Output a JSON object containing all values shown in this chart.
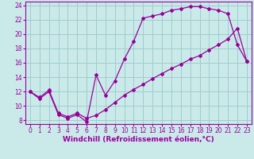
{
  "xlabel": "Windchill (Refroidissement éolien,°C)",
  "background_color": "#caeaea",
  "grid_color": "#a0cccc",
  "line_color": "#990099",
  "xlim": [
    -0.5,
    23.5
  ],
  "ylim": [
    7.5,
    24.5
  ],
  "xticks": [
    0,
    1,
    2,
    3,
    4,
    5,
    6,
    7,
    8,
    9,
    10,
    11,
    12,
    13,
    14,
    15,
    16,
    17,
    18,
    19,
    20,
    21,
    22,
    23
  ],
  "yticks": [
    8,
    10,
    12,
    14,
    16,
    18,
    20,
    22,
    24
  ],
  "curve1_x": [
    0,
    1,
    2,
    3,
    4,
    5,
    6,
    7,
    8,
    9,
    10,
    11,
    12,
    13,
    14,
    15,
    16,
    17,
    18,
    19,
    20,
    21,
    22,
    23
  ],
  "curve1_y": [
    12.0,
    11.0,
    12.0,
    8.8,
    8.3,
    8.8,
    7.8,
    14.3,
    11.5,
    13.5,
    16.5,
    19.0,
    22.2,
    22.5,
    22.8,
    23.3,
    23.5,
    23.8,
    23.8,
    23.5,
    23.3,
    22.8,
    18.5,
    16.2
  ],
  "curve2_x": [
    0,
    1,
    2,
    3,
    4,
    5,
    6,
    7,
    8,
    9,
    10,
    11,
    12,
    13,
    14,
    15,
    16,
    17,
    18,
    19,
    20,
    21,
    22,
    23
  ],
  "curve2_y": [
    12.0,
    11.2,
    12.2,
    9.0,
    8.5,
    9.0,
    8.3,
    8.7,
    9.5,
    10.5,
    11.5,
    12.3,
    13.0,
    13.8,
    14.5,
    15.2,
    15.8,
    16.5,
    17.0,
    17.8,
    18.5,
    19.3,
    20.8,
    16.2
  ],
  "tick_fontsize": 5.5,
  "xlabel_fontsize": 6.5,
  "marker": "D",
  "marker_size": 2.0,
  "line_width": 0.9
}
